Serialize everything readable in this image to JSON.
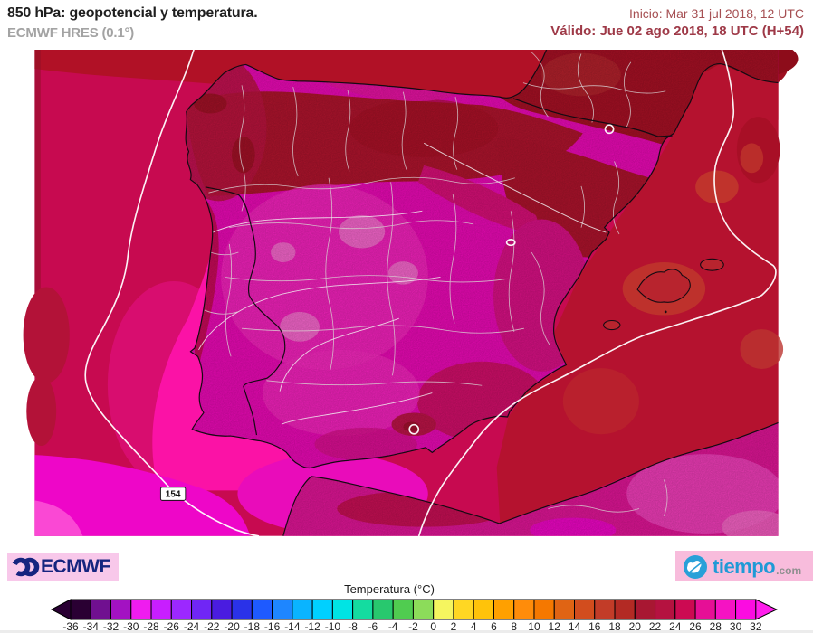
{
  "header": {
    "title": "850 hPa: geopotencial y temperatura.",
    "subtitle": "ECMWF HRES (0.1°)",
    "init_label": "Inicio: Mar 31 jul 2018, 12 UTC",
    "valid_label": "Válido: Jue 02 ago 2018, 18 UTC (H+54)"
  },
  "map": {
    "contour_label": "154",
    "region_colors": {
      "sea_atlantic_crimson": "#c70a50",
      "sea_top_band_dark_red": "#b11126",
      "sea_mediterranean_dark_red": "#b5122f",
      "sea_southwest_hot_pink": "#fb12a6",
      "sea_bottom_left_magenta": "#ee06c8",
      "land_interior_magenta": "#f30abc",
      "land_north_dark_red": "#b6152f",
      "france_dark_red": "#ad1126",
      "africa_pink": "#e8169c",
      "contour_line": "#ffffff",
      "coastline": "#140a12",
      "province_border": "#d9cfd1"
    }
  },
  "logos": {
    "ecmwf_text": "ECMWF",
    "tiempo_text": "tiempo",
    "tiempo_suffix": ".com"
  },
  "colorbar": {
    "title": "Temperatura (°C)",
    "tick_labels": [
      "-36",
      "-34",
      "-32",
      "-30",
      "-28",
      "-26",
      "-24",
      "-22",
      "-20",
      "-18",
      "-16",
      "-14",
      "-12",
      "-10",
      "-8",
      "-6",
      "-4",
      "-2",
      "0",
      "2",
      "4",
      "6",
      "8",
      "10",
      "12",
      "14",
      "16",
      "18",
      "20",
      "22",
      "24",
      "26",
      "28",
      "30",
      "32"
    ],
    "cell_colors": [
      "#2a0033",
      "#701090",
      "#a312c2",
      "#ef1cef",
      "#c81eff",
      "#9c28ff",
      "#7026f5",
      "#4a1ce0",
      "#2a32e8",
      "#1e5aff",
      "#1e86ff",
      "#0ab4ff",
      "#00d0ff",
      "#00e4e4",
      "#14dca0",
      "#28c86e",
      "#50cc50",
      "#8cdc5a",
      "#f5f55f",
      "#ffd723",
      "#ffc30a",
      "#ffa000",
      "#ff8c0a",
      "#f57800",
      "#e06414",
      "#d24d1e",
      "#c23c28",
      "#b32a24",
      "#a81732",
      "#b51240",
      "#cc0a52",
      "#e60f96",
      "#f513c3",
      "#fb0ce1"
    ],
    "left_arrow_color": "#2a0033",
    "right_arrow_color": "#ff1eec"
  }
}
